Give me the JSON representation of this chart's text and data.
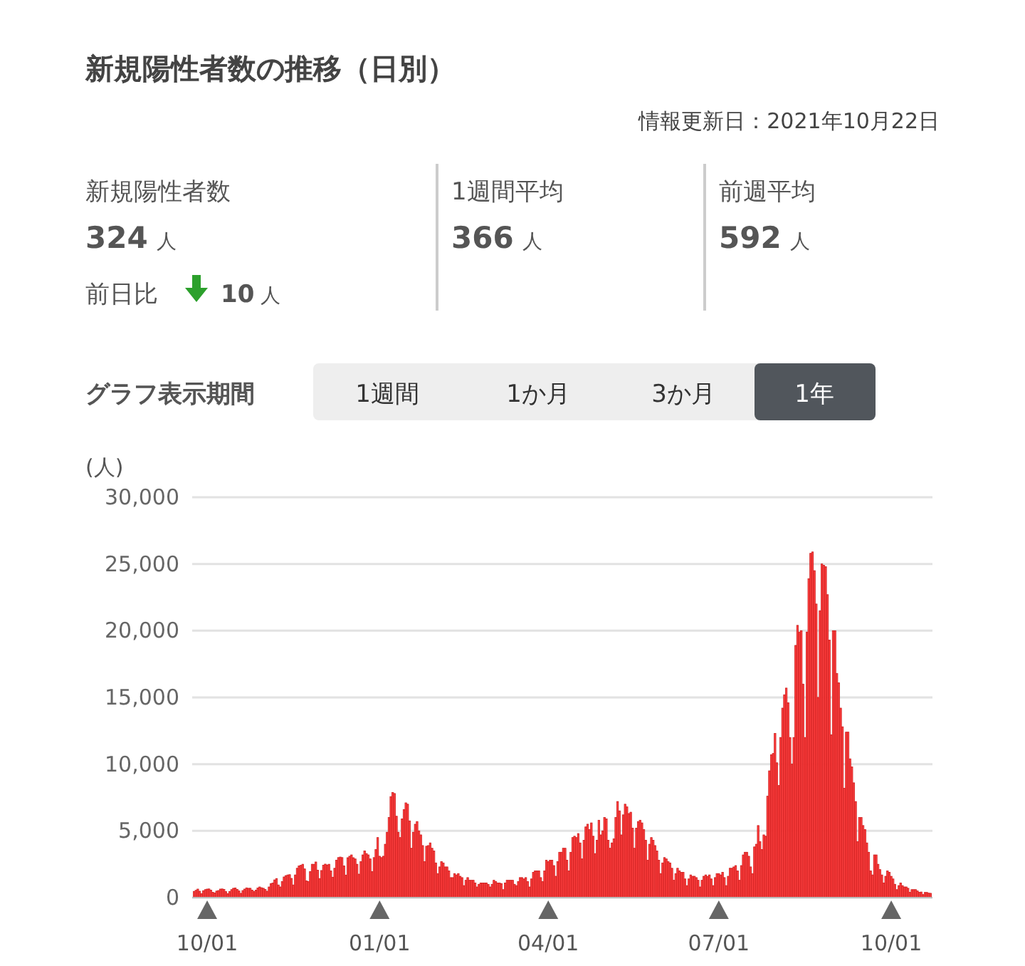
{
  "chart_data": [
    {
      "type": "other",
      "title": "新規陽性者数の推移（日別）",
      "annotations": [
        "情報更新日：2021年10月22日",
        "新規陽性者数",
        "324",
        "人",
        "前日比",
        "10",
        "人",
        "1週間平均",
        "366",
        "人",
        "前週平均",
        "592",
        "人",
        "グラフ表示期間",
        "1週間",
        "1か月",
        "3か月",
        "1年"
      ]
    },
    {
      "type": "bar",
      "ylabel": "(人)",
      "color": "#ff4040",
      "grid": "y",
      "xlim": [
        "2020-09-23",
        "2021-10-23"
      ],
      "ylim": [
        0,
        30000
      ],
      "yticks": [
        0,
        {
          "value": 5000,
          "label": "5,000"
        },
        {
          "value": 10000,
          "label": "10,000"
        },
        {
          "value": 15000,
          "label": "15,000"
        },
        {
          "value": 20000,
          "label": "20,000"
        },
        {
          "value": 25000,
          "label": "25,000"
        },
        {
          "value": 30000,
          "label": "30,000"
        }
      ],
      "xticks": [
        {
          "value": "2020-10-01",
          "label": "10/01"
        },
        {
          "value": "2021-01-01",
          "label": "01/01"
        },
        {
          "value": "2021-04-01",
          "label": "04/01"
        },
        {
          "value": "2021-07-01",
          "label": "07/01"
        },
        {
          "value": "2021-10-01",
          "label": "10/01"
        }
      ],
      "x": [
        "2020-09-24",
        "2020-09-25",
        "2020-09-26",
        "2020-09-27",
        "2020-09-28",
        "2020-09-29",
        "2020-09-30",
        "2020-10-01",
        "2020-10-02",
        "2020-10-03",
        "2020-10-04",
        "2020-10-05",
        "2020-10-06",
        "2020-10-07",
        "2020-10-08",
        "2020-10-09",
        "2020-10-10",
        "2020-10-11",
        "2020-10-12",
        "2020-10-13",
        "2020-10-14",
        "2020-10-15",
        "2020-10-16",
        "2020-10-17",
        "2020-10-18",
        "2020-10-19",
        "2020-10-20",
        "2020-10-21",
        "2020-10-22",
        "2020-10-23",
        "2020-10-24",
        "2020-10-25",
        "2020-10-26",
        "2020-10-27",
        "2020-10-28",
        "2020-10-29",
        "2020-10-30",
        "2020-10-31",
        "2020-11-01",
        "2020-11-02",
        "2020-11-03",
        "2020-11-04",
        "2020-11-05",
        "2020-11-06",
        "2020-11-07",
        "2020-11-08",
        "2020-11-09",
        "2020-11-10",
        "2020-11-11",
        "2020-11-12",
        "2020-11-13",
        "2020-11-14",
        "2020-11-15",
        "2020-11-16",
        "2020-11-17",
        "2020-11-18",
        "2020-11-19",
        "2020-11-20",
        "2020-11-21",
        "2020-11-22",
        "2020-11-23",
        "2020-11-24",
        "2020-11-25",
        "2020-11-26",
        "2020-11-27",
        "2020-11-28",
        "2020-11-29",
        "2020-11-30",
        "2020-12-01",
        "2020-12-02",
        "2020-12-03",
        "2020-12-04",
        "2020-12-05",
        "2020-12-06",
        "2020-12-07",
        "2020-12-08",
        "2020-12-09",
        "2020-12-10",
        "2020-12-11",
        "2020-12-12",
        "2020-12-13",
        "2020-12-14",
        "2020-12-15",
        "2020-12-16",
        "2020-12-17",
        "2020-12-18",
        "2020-12-19",
        "2020-12-20",
        "2020-12-21",
        "2020-12-22",
        "2020-12-23",
        "2020-12-24",
        "2020-12-25",
        "2020-12-26",
        "2020-12-27",
        "2020-12-28",
        "2020-12-29",
        "2020-12-30",
        "2020-12-31",
        "2021-01-01",
        "2021-01-02",
        "2021-01-03",
        "2021-01-04",
        "2021-01-05",
        "2021-01-06",
        "2021-01-07",
        "2021-01-08",
        "2021-01-09",
        "2021-01-10",
        "2021-01-11",
        "2021-01-12",
        "2021-01-13",
        "2021-01-14",
        "2021-01-15",
        "2021-01-16",
        "2021-01-17",
        "2021-01-18",
        "2021-01-19",
        "2021-01-20",
        "2021-01-21",
        "2021-01-22",
        "2021-01-23",
        "2021-01-24",
        "2021-01-25",
        "2021-01-26",
        "2021-01-27",
        "2021-01-28",
        "2021-01-29",
        "2021-01-30",
        "2021-01-31",
        "2021-02-01",
        "2021-02-02",
        "2021-02-03",
        "2021-02-04",
        "2021-02-05",
        "2021-02-06",
        "2021-02-07",
        "2021-02-08",
        "2021-02-09",
        "2021-02-10",
        "2021-02-11",
        "2021-02-12",
        "2021-02-13",
        "2021-02-14",
        "2021-02-15",
        "2021-02-16",
        "2021-02-17",
        "2021-02-18",
        "2021-02-19",
        "2021-02-20",
        "2021-02-21",
        "2021-02-22",
        "2021-02-23",
        "2021-02-24",
        "2021-02-25",
        "2021-02-26",
        "2021-02-27",
        "2021-02-28",
        "2021-03-01",
        "2021-03-02",
        "2021-03-03",
        "2021-03-04",
        "2021-03-05",
        "2021-03-06",
        "2021-03-07",
        "2021-03-08",
        "2021-03-09",
        "2021-03-10",
        "2021-03-11",
        "2021-03-12",
        "2021-03-13",
        "2021-03-14",
        "2021-03-15",
        "2021-03-16",
        "2021-03-17",
        "2021-03-18",
        "2021-03-19",
        "2021-03-20",
        "2021-03-21",
        "2021-03-22",
        "2021-03-23",
        "2021-03-24",
        "2021-03-25",
        "2021-03-26",
        "2021-03-27",
        "2021-03-28",
        "2021-03-29",
        "2021-03-30",
        "2021-03-31",
        "2021-04-01",
        "2021-04-02",
        "2021-04-03",
        "2021-04-04",
        "2021-04-05",
        "2021-04-06",
        "2021-04-07",
        "2021-04-08",
        "2021-04-09",
        "2021-04-10",
        "2021-04-11",
        "2021-04-12",
        "2021-04-13",
        "2021-04-14",
        "2021-04-15",
        "2021-04-16",
        "2021-04-17",
        "2021-04-18",
        "2021-04-19",
        "2021-04-20",
        "2021-04-21",
        "2021-04-22",
        "2021-04-23",
        "2021-04-24",
        "2021-04-25",
        "2021-04-26",
        "2021-04-27",
        "2021-04-28",
        "2021-04-29",
        "2021-04-30",
        "2021-05-01",
        "2021-05-02",
        "2021-05-03",
        "2021-05-04",
        "2021-05-05",
        "2021-05-06",
        "2021-05-07",
        "2021-05-08",
        "2021-05-09",
        "2021-05-10",
        "2021-05-11",
        "2021-05-12",
        "2021-05-13",
        "2021-05-14",
        "2021-05-15",
        "2021-05-16",
        "2021-05-17",
        "2021-05-18",
        "2021-05-19",
        "2021-05-20",
        "2021-05-21",
        "2021-05-22",
        "2021-05-23",
        "2021-05-24",
        "2021-05-25",
        "2021-05-26",
        "2021-05-27",
        "2021-05-28",
        "2021-05-29",
        "2021-05-30",
        "2021-05-31",
        "2021-06-01",
        "2021-06-02",
        "2021-06-03",
        "2021-06-04",
        "2021-06-05",
        "2021-06-06",
        "2021-06-07",
        "2021-06-08",
        "2021-06-09",
        "2021-06-10",
        "2021-06-11",
        "2021-06-12",
        "2021-06-13",
        "2021-06-14",
        "2021-06-15",
        "2021-06-16",
        "2021-06-17",
        "2021-06-18",
        "2021-06-19",
        "2021-06-20",
        "2021-06-21",
        "2021-06-22",
        "2021-06-23",
        "2021-06-24",
        "2021-06-25",
        "2021-06-26",
        "2021-06-27",
        "2021-06-28",
        "2021-06-29",
        "2021-06-30",
        "2021-07-01",
        "2021-07-02",
        "2021-07-03",
        "2021-07-04",
        "2021-07-05",
        "2021-07-06",
        "2021-07-07",
        "2021-07-08",
        "2021-07-09",
        "2021-07-10",
        "2021-07-11",
        "2021-07-12",
        "2021-07-13",
        "2021-07-14",
        "2021-07-15",
        "2021-07-16",
        "2021-07-17",
        "2021-07-18",
        "2021-07-19",
        "2021-07-20",
        "2021-07-21",
        "2021-07-22",
        "2021-07-23",
        "2021-07-24",
        "2021-07-25",
        "2021-07-26",
        "2021-07-27",
        "2021-07-28",
        "2021-07-29",
        "2021-07-30",
        "2021-07-31",
        "2021-08-01",
        "2021-08-02",
        "2021-08-03",
        "2021-08-04",
        "2021-08-05",
        "2021-08-06",
        "2021-08-07",
        "2021-08-08",
        "2021-08-09",
        "2021-08-10",
        "2021-08-11",
        "2021-08-12",
        "2021-08-13",
        "2021-08-14",
        "2021-08-15",
        "2021-08-16",
        "2021-08-17",
        "2021-08-18",
        "2021-08-19",
        "2021-08-20",
        "2021-08-21",
        "2021-08-22",
        "2021-08-23",
        "2021-08-24",
        "2021-08-25",
        "2021-08-26",
        "2021-08-27",
        "2021-08-28",
        "2021-08-29",
        "2021-08-30",
        "2021-08-31",
        "2021-09-01",
        "2021-09-02",
        "2021-09-03",
        "2021-09-04",
        "2021-09-05",
        "2021-09-06",
        "2021-09-07",
        "2021-09-08",
        "2021-09-09",
        "2021-09-10",
        "2021-09-11",
        "2021-09-12",
        "2021-09-13",
        "2021-09-14",
        "2021-09-15",
        "2021-09-16",
        "2021-09-17",
        "2021-09-18",
        "2021-09-19",
        "2021-09-20",
        "2021-09-21",
        "2021-09-22",
        "2021-09-23",
        "2021-09-24",
        "2021-09-25",
        "2021-09-26",
        "2021-09-27",
        "2021-09-28",
        "2021-09-29",
        "2021-09-30",
        "2021-10-01",
        "2021-10-02",
        "2021-10-03",
        "2021-10-04",
        "2021-10-05",
        "2021-10-06",
        "2021-10-07",
        "2021-10-08",
        "2021-10-09",
        "2021-10-10",
        "2021-10-11",
        "2021-10-12",
        "2021-10-13",
        "2021-10-14",
        "2021-10-15",
        "2021-10-16",
        "2021-10-17",
        "2021-10-18",
        "2021-10-19",
        "2021-10-20",
        "2021-10-21",
        "2021-10-22"
      ],
      "values": [
        470,
        550,
        640,
        480,
        300,
        520,
        600,
        640,
        650,
        560,
        400,
        350,
        490,
        530,
        640,
        650,
        620,
        450,
        300,
        460,
        600,
        700,
        720,
        620,
        500,
        320,
        530,
        640,
        730,
        700,
        700,
        560,
        470,
        560,
        720,
        800,
        740,
        700,
        610,
        480,
        800,
        1050,
        1100,
        1330,
        1430,
        950,
        800,
        1200,
        1550,
        1650,
        1700,
        1720,
        1440,
        950,
        1700,
        2200,
        2380,
        2420,
        2500,
        2150,
        1250,
        1200,
        1950,
        2500,
        2500,
        2670,
        2060,
        1430,
        2030,
        2430,
        2510,
        2450,
        2500,
        2000,
        1530,
        2200,
        2800,
        3000,
        3040,
        3000,
        2380,
        1690,
        2990,
        3100,
        3200,
        2990,
        2900,
        2500,
        1760,
        2700,
        3200,
        3500,
        3300,
        3200,
        2900,
        1950,
        3000,
        3600,
        4500,
        3100,
        3000,
        3100,
        4000,
        4900,
        6000,
        7570,
        7880,
        7800,
        6100,
        4900,
        4500,
        5900,
        6600,
        7100,
        7000,
        5750,
        3700,
        4900,
        5500,
        5700,
        5000,
        4700,
        3900,
        2700,
        3850,
        3900,
        4100,
        3700,
        3500,
        2600,
        1800,
        2300,
        2700,
        2600,
        2300,
        2300,
        2000,
        1500,
        1500,
        1800,
        1700,
        1800,
        1600,
        1500,
        900,
        1300,
        1500,
        1300,
        1300,
        1300,
        1100,
        800,
        1000,
        1100,
        1100,
        1100,
        1100,
        990,
        800,
        1000,
        1300,
        1200,
        1100,
        1100,
        1050,
        600,
        1100,
        1300,
        1300,
        1300,
        1300,
        1000,
        900,
        1200,
        1500,
        1500,
        1400,
        1500,
        1200,
        800,
        1400,
        1900,
        2000,
        2000,
        2000,
        1500,
        1200,
        2000,
        2800,
        2700,
        2800,
        2800,
        2400,
        1600,
        2700,
        3400,
        3400,
        3700,
        3700,
        2800,
        2000,
        3400,
        4500,
        4600,
        4500,
        4800,
        4100,
        2900,
        4300,
        5300,
        5500,
        5100,
        5600,
        4600,
        3300,
        4300,
        5800,
        4700,
        5000,
        6000,
        5900,
        4300,
        3700,
        4100,
        4400,
        6000,
        7200,
        6500,
        4700,
        6200,
        7000,
        6800,
        6300,
        6400,
        5200,
        3700,
        5200,
        5700,
        5800,
        5600,
        5100,
        4300,
        2800,
        4000,
        4500,
        4300,
        3900,
        3500,
        2800,
        1800,
        2600,
        3000,
        2900,
        2700,
        2600,
        2200,
        1300,
        1800,
        2200,
        2000,
        1900,
        1900,
        1400,
        900,
        1400,
        1700,
        1600,
        1600,
        1500,
        1300,
        800,
        1300,
        1600,
        1700,
        1600,
        1700,
        1400,
        900,
        1500,
        1800,
        1800,
        1700,
        1900,
        1500,
        900,
        1600,
        2200,
        2200,
        2300,
        2400,
        2000,
        1300,
        2400,
        3200,
        3400,
        3400,
        3100,
        2300,
        1800,
        3800,
        4000,
        5400,
        4200,
        3600,
        4700,
        4600,
        7600,
        9500,
        10700,
        10800,
        12300,
        10100,
        8400,
        12000,
        14200,
        15200,
        15700,
        14600,
        12000,
        10000,
        12000,
        18900,
        20400,
        19900,
        20000,
        16000,
        12000,
        19900,
        23900,
        25800,
        25900,
        24500,
        22000,
        15000,
        21500,
        25000,
        24900,
        24800,
        22700,
        19300,
        12200,
        20000,
        20000,
        16800,
        16100,
        14200,
        12800,
        8200,
        12400,
        12400,
        10400,
        9800,
        8600,
        7200,
        4200,
        6000,
        6000,
        5400,
        5100,
        4100,
        3400,
        2000,
        1700,
        3200,
        3200,
        2500,
        2100,
        1700,
        1100,
        1600,
        2000,
        1900,
        1600,
        1400,
        1000,
        600,
        900,
        1100,
        900,
        800,
        800,
        700,
        400,
        600,
        600,
        600,
        500,
        400,
        420,
        230,
        390,
        390,
        334,
        324
      ]
    }
  ]
}
